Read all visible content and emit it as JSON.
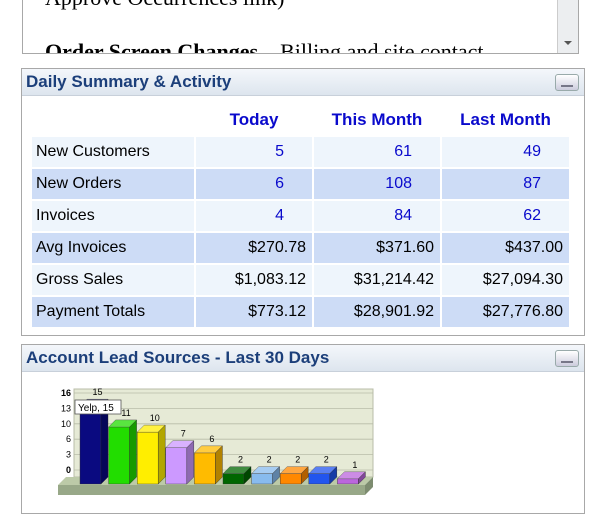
{
  "top_panel": {
    "line": "Approve Occurrences link)",
    "bold_text": "Order Screen Changes",
    "text": "– Billing and site contact"
  },
  "daily_summary": {
    "title": "Daily Summary & Activity",
    "columns": [
      "Today",
      "This Month",
      "Last Month"
    ],
    "rows": [
      [
        "New Customers",
        "5",
        "61",
        "49"
      ],
      [
        "New Orders",
        "6",
        "108",
        "87"
      ],
      [
        "Invoices",
        "4",
        "84",
        "62"
      ],
      [
        "Avg Invoices",
        "$270.78",
        "$371.60",
        "$437.00"
      ],
      [
        "Gross Sales",
        "$1,083.12",
        "$31,214.42",
        "$27,094.30"
      ],
      [
        "Payment Totals",
        "$773.12",
        "$28,901.92",
        "$27,776.80"
      ]
    ]
  },
  "lead_sources": {
    "title": "Account Lead Sources - Last 30 Days"
  },
  "chart_data": {
    "type": "bar",
    "categories": [
      "Yelp",
      null,
      null,
      null,
      null,
      null,
      null,
      null,
      null,
      null
    ],
    "values": [
      15,
      11,
      10,
      7,
      6,
      2,
      2,
      2,
      2,
      1
    ],
    "colors": [
      "#0a0a80",
      "#22dd00",
      "#ffee00",
      "#cc99ff",
      "#ffbb00",
      "#006600",
      "#88bbee",
      "#ff8800",
      "#2255ee",
      "#bb66dd"
    ],
    "tooltip": "Yelp, 15",
    "ylim": [
      0,
      16
    ],
    "yticks": [
      0,
      {
        "value": 3.2,
        "label": "3"
      },
      {
        "value": 6.4,
        "label": "6"
      },
      {
        "value": 9.6,
        "label": "10"
      },
      {
        "value": 12.8,
        "label": "13"
      },
      16
    ],
    "grid": true
  }
}
